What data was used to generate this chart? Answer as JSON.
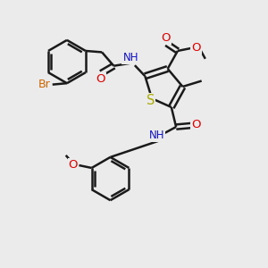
{
  "background_color": "#ebebeb",
  "bond_color": "#1a1a1a",
  "bond_width": 1.8,
  "atom_colors": {
    "Br": "#cc6600",
    "O": "#dd0000",
    "N": "#1111cc",
    "S": "#aaaa00",
    "C": "#1a1a1a",
    "H": "#008888"
  },
  "font_size": 8.5,
  "fig_width": 3.0,
  "fig_height": 3.0,
  "dpi": 100
}
